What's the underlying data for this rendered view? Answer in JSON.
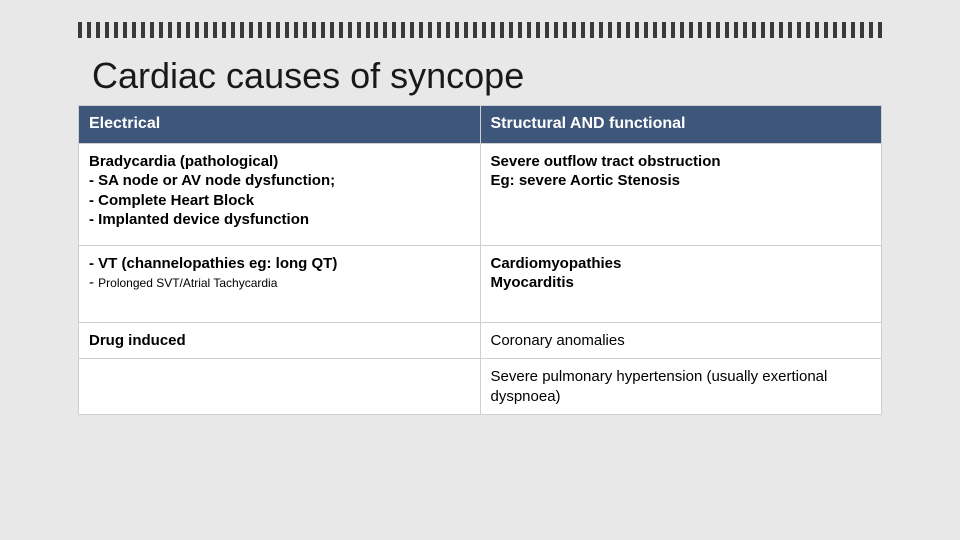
{
  "decor": {
    "tick_count": 90,
    "tick_color": "#3a3a3a"
  },
  "title": "Cardiac causes of syncope",
  "table": {
    "header_bg": "#3d5679",
    "header_fg": "#ffffff",
    "border_color": "#d0d0d0",
    "headers": {
      "left": "Electrical",
      "right": "Structural AND functional"
    },
    "rows": {
      "r1": {
        "left_line1": "Bradycardia (pathological)",
        "left_line2": "-   SA node or AV node dysfunction;",
        "left_line3": "-   Complete Heart Block",
        "left_line4": "-  Implanted device dysfunction",
        "right_line1": "Severe  outflow tract obstruction",
        "right_line2": "Eg: severe Aortic Stenosis"
      },
      "r2": {
        "left_line1": "-   VT (channelopathies eg: long QT)",
        "left_line2_prefix": "-      ",
        "left_line2_small": "Prolonged SVT/Atrial Tachycardia",
        "right_line1": "Cardiomyopathies",
        "right_line2": "Myocarditis"
      },
      "r3": {
        "left": "Drug induced",
        "right": "Coronary anomalies"
      },
      "r4": {
        "left": "",
        "right": "Severe pulmonary hypertension (usually exertional dyspnoea)"
      }
    }
  }
}
